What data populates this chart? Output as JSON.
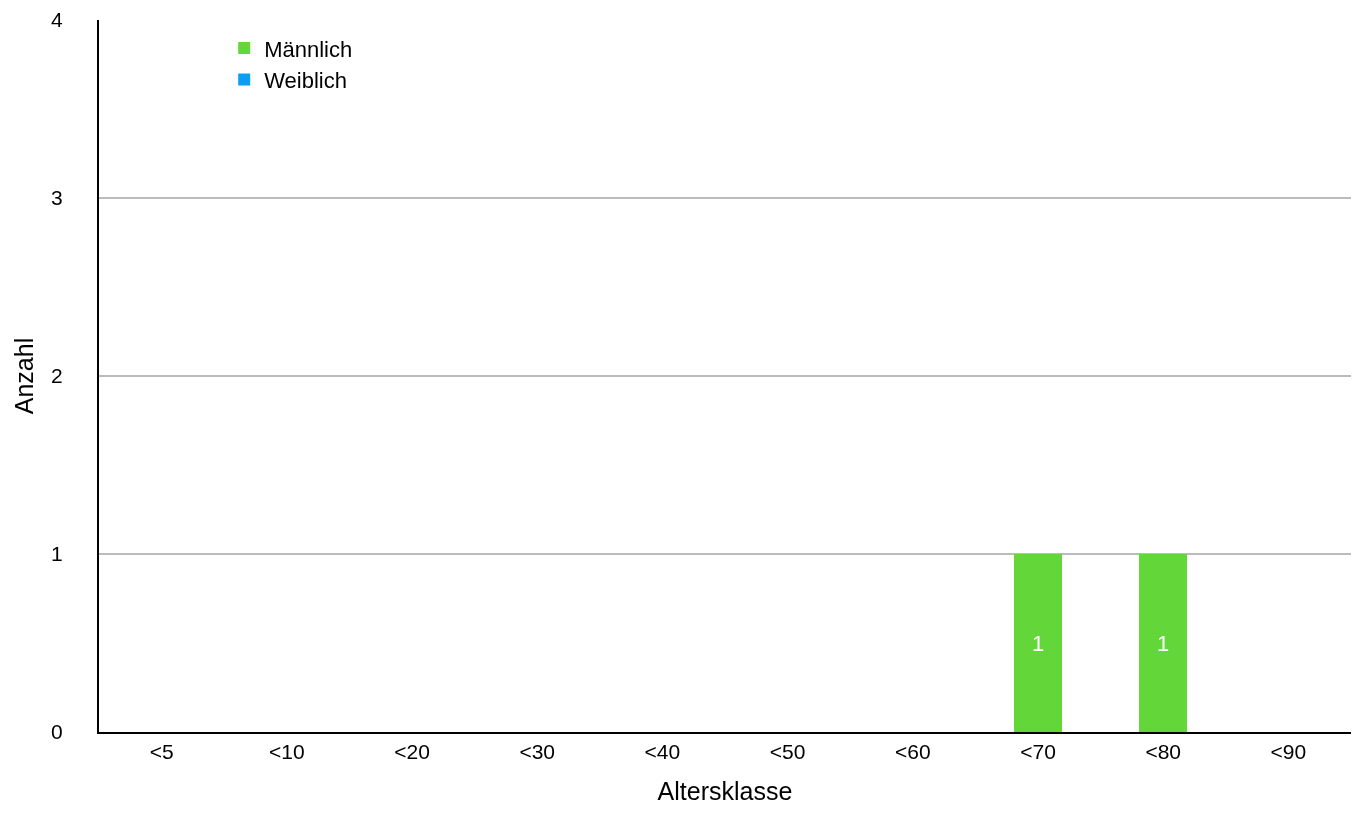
{
  "chart_data": {
    "type": "bar",
    "stacked": true,
    "xlabel": "Altersklasse",
    "ylabel": "Anzahl",
    "categories": [
      "<5",
      "<10",
      "<20",
      "<30",
      "<40",
      "<50",
      "<60",
      "<70",
      "<80",
      "<90"
    ],
    "series": [
      {
        "name": "Weiblich",
        "color": "#0a9ff5",
        "values": [
          0,
          0,
          0,
          0,
          0,
          0,
          0,
          0,
          0,
          0
        ]
      },
      {
        "name": "Männlich",
        "color": "#63d63a",
        "values": [
          0,
          0,
          0,
          0,
          0,
          0,
          0,
          1,
          1,
          0
        ],
        "value_labels": [
          null,
          null,
          null,
          null,
          null,
          null,
          null,
          "1",
          "1",
          null
        ]
      }
    ],
    "ylim": [
      0,
      4
    ],
    "yticks": [
      0,
      1,
      2,
      3,
      4
    ],
    "grid": "y",
    "legend": "top left"
  }
}
